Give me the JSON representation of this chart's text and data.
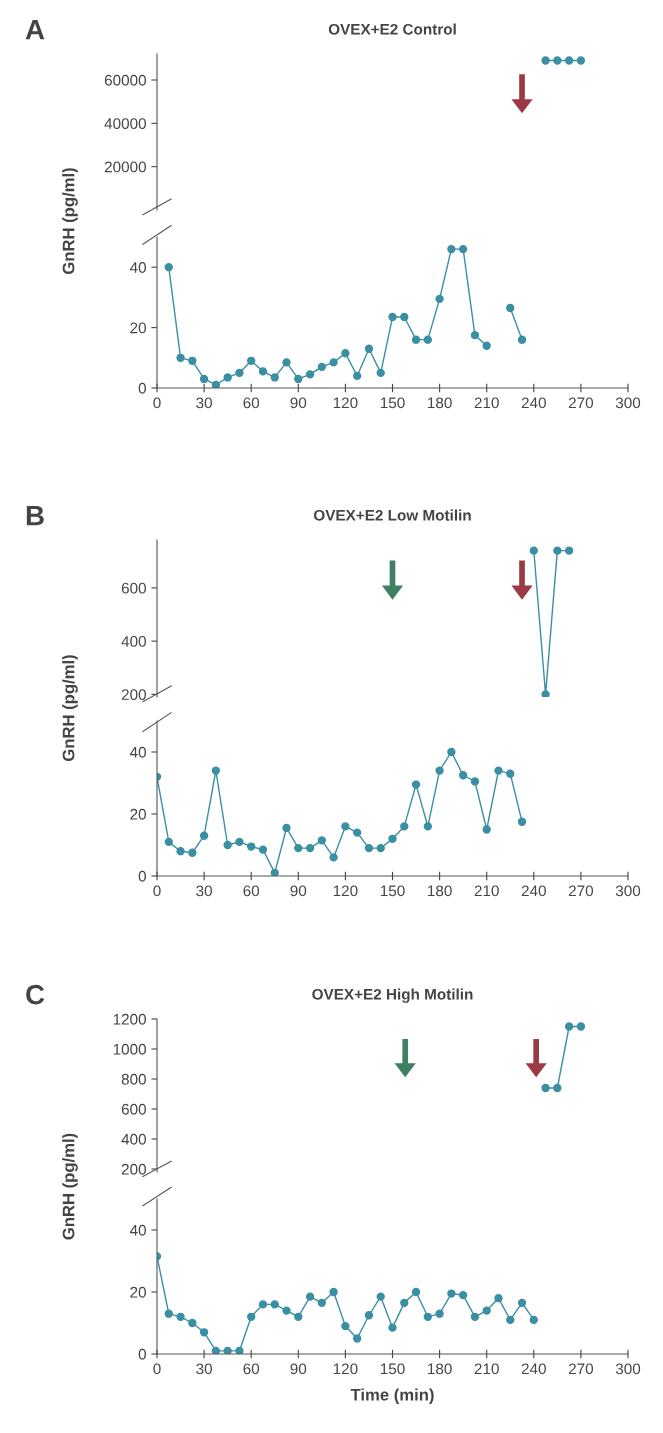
{
  "chart_data": [
    {
      "type": "line",
      "title": "OVEX+E2 Control",
      "ylabel": "GnRH (pg/ml)",
      "annotations": [
        "A"
      ],
      "x": [
        247.5,
        255,
        262.5,
        270
      ],
      "series": [
        {
          "color": "#3a8fa3",
          "values": [
            69000,
            69000,
            69000,
            69000
          ]
        }
      ],
      "xlim": [
        0,
        300
      ],
      "ylim": [
        0,
        72000
      ],
      "yticks": [
        20000,
        40000,
        60000
      ],
      "tick_labels": "y",
      "marker": "circle",
      "line_style": "solid",
      "grid": false,
      "legend": false
    },
    {
      "type": "line",
      "x": [
        7.5,
        15,
        22.5,
        30,
        37.5,
        45,
        52.5,
        60,
        67.5,
        75,
        82.5,
        90,
        97.5,
        105,
        112.5,
        120,
        127.5,
        135,
        142.5,
        150,
        157.5,
        165,
        172.5,
        180,
        187.5,
        195,
        202.5,
        210,
        217.5,
        225,
        232.5
      ],
      "series": [
        {
          "color": "#3a8fa3",
          "values": [
            40,
            10,
            9,
            3,
            1,
            3.5,
            5,
            9,
            5.5,
            3.5,
            8.5,
            3,
            4.5,
            7,
            8.5,
            11.5,
            4,
            13,
            5,
            23.5,
            23.5,
            16,
            16,
            29.5,
            46,
            46,
            17.5,
            14,
            null,
            26.5,
            16
          ]
        }
      ],
      "xlim": [
        0,
        300
      ],
      "xticks": [
        0,
        30,
        60,
        90,
        120,
        150,
        180,
        210,
        240,
        270,
        300
      ],
      "ylim": [
        0,
        50
      ],
      "yticks": [
        0,
        20,
        40
      ],
      "marker": "circle",
      "line_style": "solid",
      "grid": false,
      "legend": false
    },
    {
      "type": "line",
      "title": "OVEX+E2 Low Motilin",
      "ylabel": "GnRH (pg/ml)",
      "annotations": [
        "B"
      ],
      "x": [
        240,
        247.5,
        255,
        262.5
      ],
      "series": [
        {
          "color": "#3a8fa3",
          "values": [
            740,
            200,
            740,
            740
          ]
        }
      ],
      "xlim": [
        0,
        300
      ],
      "ylim": [
        190,
        780
      ],
      "yticks": [
        200,
        400,
        600
      ],
      "tick_labels": "y",
      "marker": "circle",
      "line_style": "solid",
      "grid": false,
      "legend": false
    },
    {
      "type": "line",
      "x": [
        0,
        7.5,
        15,
        22.5,
        30,
        37.5,
        45,
        52.5,
        60,
        67.5,
        75,
        82.5,
        90,
        97.5,
        105,
        112.5,
        120,
        127.5,
        135,
        142.5,
        150,
        157.5,
        165,
        172.5,
        180,
        187.5,
        195,
        202.5,
        210,
        217.5,
        225,
        232.5
      ],
      "series": [
        {
          "color": "#3a8fa3",
          "values": [
            32,
            11,
            8,
            7.5,
            13,
            34,
            10,
            11,
            9.5,
            8.5,
            1,
            15.5,
            9,
            9,
            11.5,
            6,
            16,
            14,
            9,
            9,
            12,
            16,
            29.5,
            16,
            34,
            40,
            32.5,
            30.5,
            15,
            34,
            33,
            17.5
          ]
        }
      ],
      "xlim": [
        0,
        300
      ],
      "xticks": [
        0,
        30,
        60,
        90,
        120,
        150,
        180,
        210,
        240,
        270,
        300
      ],
      "ylim": [
        0,
        50
      ],
      "yticks": [
        0,
        20,
        40
      ],
      "marker": "circle",
      "line_style": "solid",
      "grid": false,
      "legend": false
    },
    {
      "type": "line",
      "title": "OVEX+E2 High Motilin",
      "ylabel": "GnRH (pg/ml)",
      "annotations": [
        "C"
      ],
      "x": [
        247.5,
        255,
        262.5,
        270
      ],
      "series": [
        {
          "color": "#3a8fa3",
          "values": [
            740,
            740,
            1150,
            1150
          ]
        }
      ],
      "xlim": [
        0,
        300
      ],
      "ylim": [
        180,
        1200
      ],
      "yticks": [
        200,
        400,
        600,
        800,
        1000,
        1200
      ],
      "tick_labels": "y",
      "marker": "circle",
      "line_style": "solid",
      "grid": false,
      "legend": false
    },
    {
      "type": "line",
      "xlabel": "Time (min)",
      "x": [
        0,
        7.5,
        15,
        22.5,
        30,
        37.5,
        45,
        52.5,
        60,
        67.5,
        75,
        82.5,
        90,
        97.5,
        105,
        112.5,
        120,
        127.5,
        135,
        142.5,
        150,
        157.5,
        165,
        172.5,
        180,
        187.5,
        195,
        202.5,
        210,
        217.5,
        225,
        232.5,
        240
      ],
      "series": [
        {
          "color": "#3a8fa3",
          "values": [
            31.5,
            13,
            12,
            10,
            7,
            1,
            1,
            1,
            12,
            16,
            16,
            14,
            12,
            18.5,
            16.5,
            20,
            9,
            5,
            12.5,
            18.5,
            8.5,
            16.5,
            20,
            12,
            13,
            19.5,
            19,
            12,
            14,
            18,
            11,
            16.5,
            11
          ]
        }
      ],
      "xlim": [
        0,
        300
      ],
      "xticks": [
        0,
        30,
        60,
        90,
        120,
        150,
        180,
        210,
        240,
        270,
        300
      ],
      "ylim": [
        0,
        50
      ],
      "yticks": [
        0,
        20,
        40
      ],
      "marker": "circle",
      "line_style": "solid",
      "grid": false,
      "legend": false
    }
  ]
}
